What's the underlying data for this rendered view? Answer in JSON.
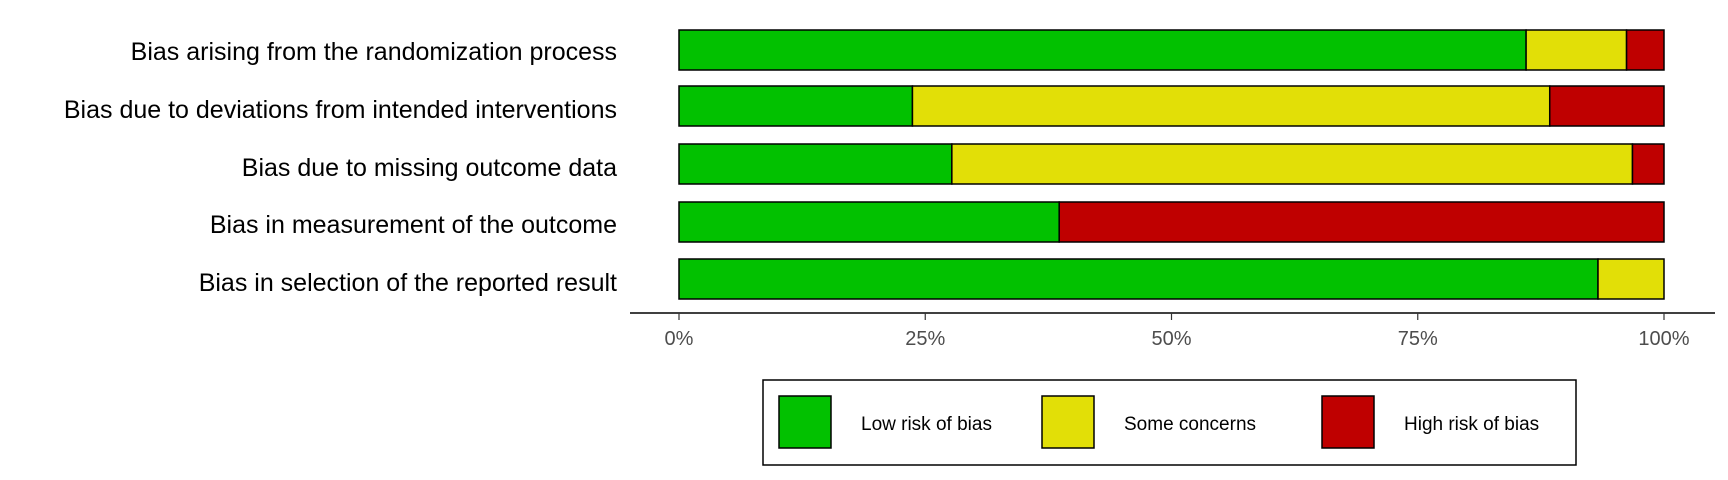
{
  "chart_data": {
    "type": "bar",
    "orientation": "horizontal",
    "stacked": true,
    "categories": [
      "Bias arising from the randomization process",
      "Bias due to deviations from intended interventions",
      "Bias due to missing outcome data",
      "Bias in measurement of the outcome",
      "Bias in selection of the reported result"
    ],
    "series": [
      {
        "name": "Low risk of bias",
        "color": "#02C100",
        "values": [
          86,
          23.7,
          27.7,
          38.6,
          93.3
        ]
      },
      {
        "name": "Some concerns",
        "color": "#E2DF07",
        "values": [
          10.2,
          64.7,
          69.1,
          0,
          6.7
        ]
      },
      {
        "name": "High risk of bias",
        "color": "#BF0000",
        "values": [
          3.8,
          11.6,
          3.2,
          61.4,
          0
        ]
      }
    ],
    "x_ticks": [
      "0%",
      "25%",
      "50%",
      "75%",
      "100%"
    ],
    "xlim": [
      0,
      100
    ],
    "grid": false,
    "legend_position": "bottom"
  }
}
